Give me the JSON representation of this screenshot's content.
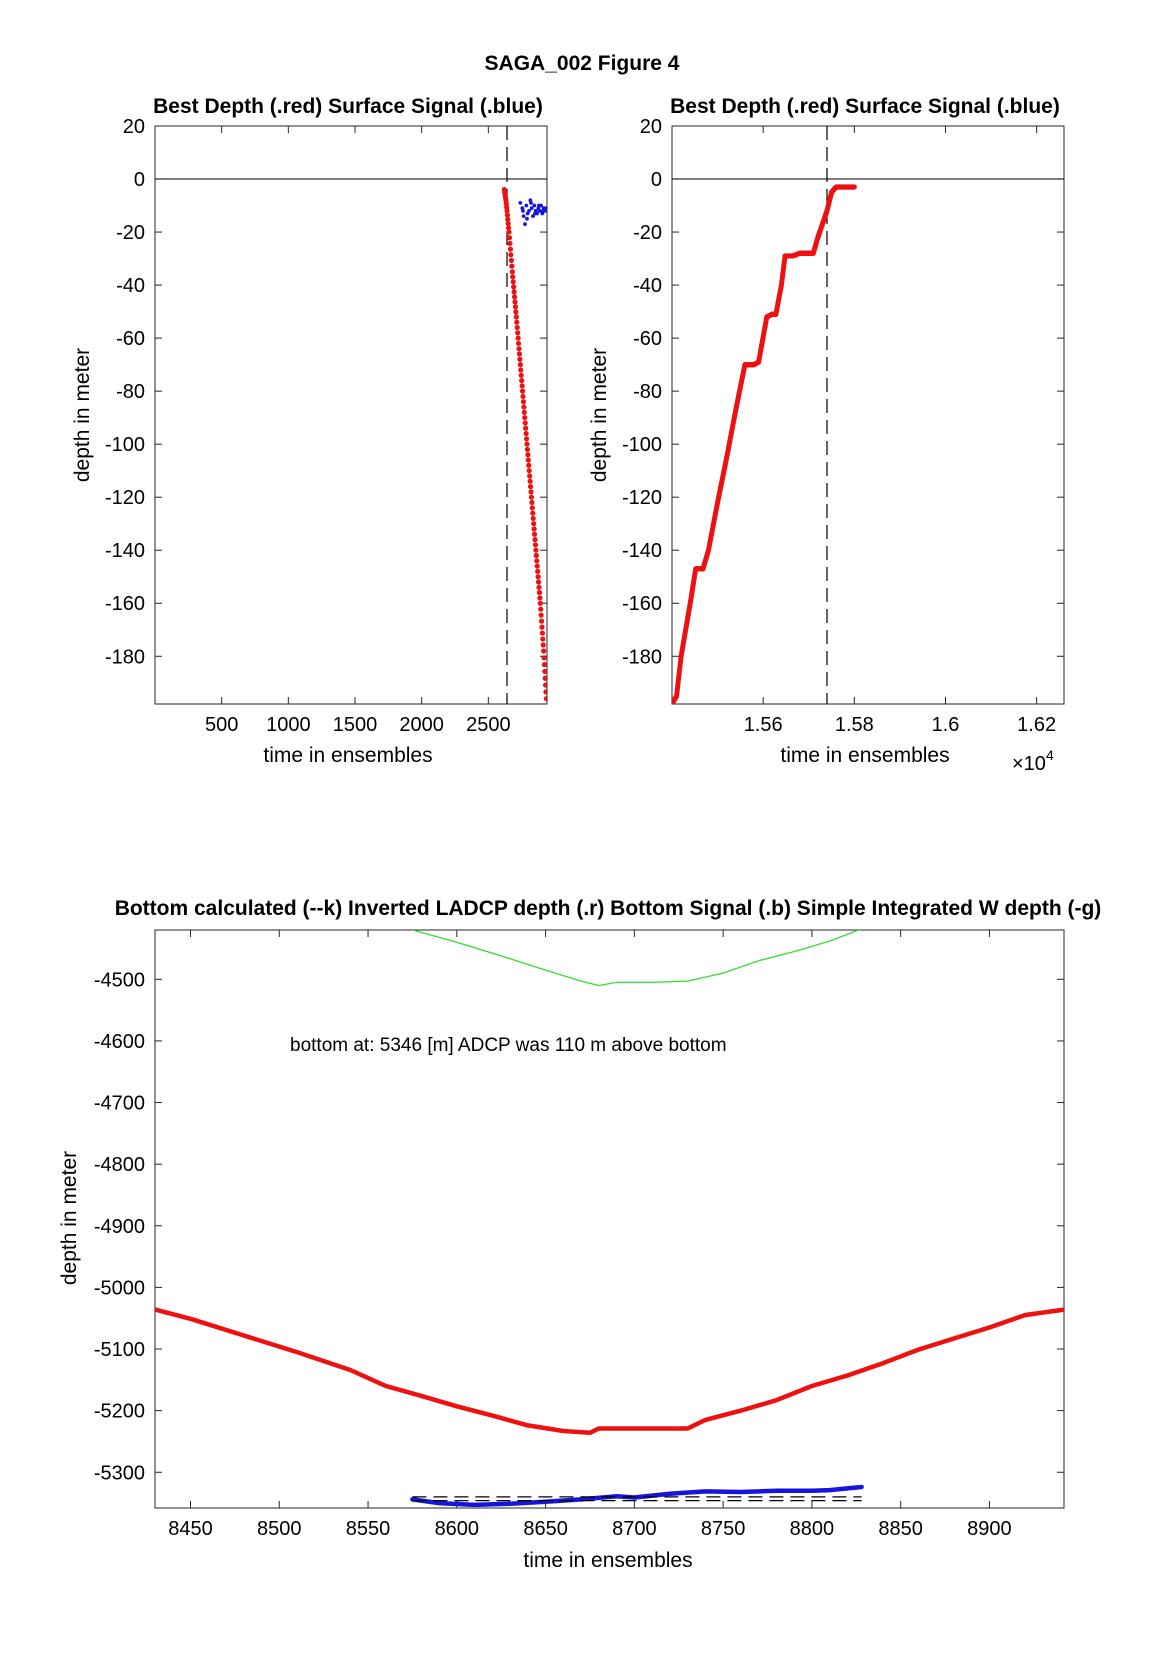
{
  "figure": {
    "suptitle": "SAGA_002   Figure 4",
    "background": "#ffffff"
  },
  "colors": {
    "red": "#ee1111",
    "blue": "#1515dd",
    "green": "#33dd33",
    "black": "#000000"
  },
  "panels": [
    {
      "title": "Best Depth (.red) Surface Signal (.blue)",
      "xlabel": "time in ensembles",
      "ylabel": "depth in meter",
      "xlim": [
        0,
        2940
      ],
      "ylim": [
        -198,
        20
      ],
      "xticks": [
        {
          "v": 500,
          "label": "500"
        },
        {
          "v": 1000,
          "label": "1000"
        },
        {
          "v": 1500,
          "label": "1500"
        },
        {
          "v": 2000,
          "label": "2000"
        },
        {
          "v": 2500,
          "label": "2500"
        }
      ],
      "yticks": [
        {
          "v": 20,
          "label": "20"
        },
        {
          "v": 0,
          "label": "0"
        },
        {
          "v": -20,
          "label": "-20"
        },
        {
          "v": -40,
          "label": "-40"
        },
        {
          "v": -60,
          "label": "-60"
        },
        {
          "v": -80,
          "label": "-80"
        },
        {
          "v": -100,
          "label": "-100"
        },
        {
          "v": -120,
          "label": "-120"
        },
        {
          "v": -140,
          "label": "-140"
        },
        {
          "v": -160,
          "label": "-160"
        },
        {
          "v": -180,
          "label": "-180"
        }
      ],
      "exponent": ""
    },
    {
      "title": "Best Depth (.red) Surface Signal (.blue)",
      "xlabel": "time in ensembles",
      "ylabel": "depth in meter",
      "xlim": [
        15400,
        16260
      ],
      "ylim": [
        -198,
        20
      ],
      "xticks": [
        {
          "v": 15600,
          "label": "1.56"
        },
        {
          "v": 15800,
          "label": "1.58"
        },
        {
          "v": 16000,
          "label": "1.6"
        },
        {
          "v": 16200,
          "label": "1.62"
        }
      ],
      "yticks": [
        {
          "v": 20,
          "label": "20"
        },
        {
          "v": 0,
          "label": "0"
        },
        {
          "v": -20,
          "label": "-20"
        },
        {
          "v": -40,
          "label": "-40"
        },
        {
          "v": -60,
          "label": "-60"
        },
        {
          "v": -80,
          "label": "-80"
        },
        {
          "v": -100,
          "label": "-100"
        },
        {
          "v": -120,
          "label": "-120"
        },
        {
          "v": -140,
          "label": "-140"
        },
        {
          "v": -160,
          "label": "-160"
        },
        {
          "v": -180,
          "label": "-180"
        }
      ],
      "exponent": "×10",
      "exponent_power": "4"
    },
    {
      "title": "Bottom calculated (--k) Inverted LADCP depth (.r) Bottom Signal (.b) Simple Integrated W depth (-g)",
      "xlabel": "time in ensembles",
      "ylabel": "depth in meter",
      "xlim": [
        8430,
        8942
      ],
      "ylim": [
        -5358,
        -4420
      ],
      "xticks": [
        {
          "v": 8450,
          "label": "8450"
        },
        {
          "v": 8500,
          "label": "8500"
        },
        {
          "v": 8550,
          "label": "8550"
        },
        {
          "v": 8600,
          "label": "8600"
        },
        {
          "v": 8650,
          "label": "8650"
        },
        {
          "v": 8700,
          "label": "8700"
        },
        {
          "v": 8750,
          "label": "8750"
        },
        {
          "v": 8800,
          "label": "8800"
        },
        {
          "v": 8850,
          "label": "8850"
        },
        {
          "v": 8900,
          "label": "8900"
        }
      ],
      "yticks": [
        {
          "v": -4500,
          "label": "-4500"
        },
        {
          "v": -4600,
          "label": "-4600"
        },
        {
          "v": -4700,
          "label": "-4700"
        },
        {
          "v": -4800,
          "label": "-4800"
        },
        {
          "v": -4900,
          "label": "-4900"
        },
        {
          "v": -5000,
          "label": "-5000"
        },
        {
          "v": -5100,
          "label": "-5100"
        },
        {
          "v": -5200,
          "label": "-5200"
        },
        {
          "v": -5300,
          "label": "-5300"
        }
      ],
      "annotation": "bottom at: 5346 [m]   ADCP was 110 m above bottom"
    }
  ],
  "chart_data": [
    {
      "type": "scatter",
      "title": "Best Depth (.red) Surface Signal (.blue)",
      "xlabel": "time in ensembles",
      "ylabel": "depth in meter",
      "xlim": [
        0,
        2940
      ],
      "ylim": [
        -198,
        20
      ],
      "grid": false,
      "reference_lines": {
        "zero_line_y": 0,
        "vertical_dashed_x": 2640
      },
      "series": [
        {
          "color": "red",
          "marker": "dot",
          "x": [
            2620,
            2625,
            2632,
            2640,
            2655,
            2680,
            2710,
            2740,
            2770,
            2800,
            2830,
            2860,
            2890,
            2915,
            2935
          ],
          "y": [
            -4,
            -6,
            -8,
            -12,
            -20,
            -35,
            -52,
            -70,
            -88,
            -106,
            -124,
            -142,
            -160,
            -178,
            -196
          ]
        },
        {
          "color": "blue",
          "marker": "dot",
          "x": [
            2740,
            2755,
            2765,
            2775,
            2785,
            2795,
            2805,
            2815,
            2825,
            2835,
            2845,
            2855,
            2865,
            2875,
            2885,
            2895,
            2905,
            2915,
            2925,
            2935,
            2760,
            2790,
            2820,
            2850,
            2880,
            2910
          ],
          "y": [
            -9,
            -11,
            -14,
            -17,
            -10,
            -13,
            -12,
            -8,
            -11,
            -14,
            -10,
            -12,
            -13,
            -11,
            -12,
            -10,
            -13,
            -11,
            -12,
            -11,
            -12,
            -15,
            -9,
            -13,
            -10,
            -12
          ]
        }
      ]
    },
    {
      "type": "scatter",
      "title": "Best Depth (.red) Surface Signal (.blue)",
      "xlabel": "time in ensembles",
      "ylabel": "depth in meter",
      "x_scale_label": "×10^4",
      "xlim": [
        15400,
        16260
      ],
      "ylim": [
        -198,
        20
      ],
      "grid": false,
      "reference_lines": {
        "zero_line_y": 0,
        "vertical_dashed_x": 15740
      },
      "series": [
        {
          "color": "red",
          "marker": "dot",
          "x": [
            15400,
            15410,
            15420,
            15440,
            15452,
            15468,
            15480,
            15500,
            15520,
            15540,
            15560,
            15570,
            15580,
            15590,
            15608,
            15620,
            15628,
            15640,
            15648,
            15660,
            15665,
            15680,
            15700,
            15710,
            15720,
            15730,
            15740,
            15750,
            15760,
            15800
          ],
          "y": [
            -198,
            -195,
            -180,
            -160,
            -147,
            -147,
            -140,
            -122,
            -105,
            -87,
            -70,
            -70,
            -70,
            -69,
            -52,
            -51,
            -51,
            -40,
            -29,
            -29,
            -29,
            -28,
            -28,
            -28,
            -22,
            -17,
            -12,
            -5,
            -3,
            -3
          ]
        }
      ]
    },
    {
      "type": "line",
      "title": "Bottom calculated (--k) Inverted LADCP depth (.r) Bottom Signal (.b) Simple Integrated W depth (-g)",
      "xlabel": "time in ensembles",
      "ylabel": "depth in meter",
      "xlim": [
        8430,
        8942
      ],
      "ylim": [
        -5358,
        -4420
      ],
      "grid": false,
      "annotation": "bottom at: 5346 [m]   ADCP was 110 m above bottom",
      "series": [
        {
          "color": "red",
          "style": "thick dots",
          "x": [
            8430,
            8450,
            8480,
            8510,
            8540,
            8560,
            8580,
            8600,
            8620,
            8640,
            8660,
            8675,
            8680,
            8700,
            8720,
            8730,
            8740,
            8760,
            8780,
            8800,
            8820,
            8840,
            8860,
            8880,
            8900,
            8920,
            8942
          ],
          "y": [
            -5036,
            -5051,
            -5078,
            -5105,
            -5134,
            -5160,
            -5176,
            -5193,
            -5208,
            -5224,
            -5233,
            -5236,
            -5229,
            -5229,
            -5229,
            -5229,
            -5215,
            -5200,
            -5183,
            -5160,
            -5143,
            -5123,
            -5101,
            -5083,
            -5065,
            -5045,
            -5036
          ]
        },
        {
          "color": "blue",
          "style": "thick dots",
          "x": [
            8575,
            8590,
            8610,
            8630,
            8650,
            8670,
            8690,
            8700,
            8720,
            8740,
            8760,
            8780,
            8800,
            8810,
            8828
          ],
          "y": [
            -5344,
            -5350,
            -5353,
            -5351,
            -5348,
            -5344,
            -5339,
            -5341,
            -5335,
            -5331,
            -5332,
            -5330,
            -5330,
            -5329,
            -5324
          ]
        },
        {
          "color": "green",
          "style": "thin line",
          "x": [
            8575,
            8600,
            8625,
            8650,
            8670,
            8680,
            8690,
            8700,
            8710,
            8730,
            8750,
            8770,
            8790,
            8810,
            8828
          ],
          "y": [
            -4420,
            -4440,
            -4462,
            -4485,
            -4503,
            -4510,
            -4505,
            -4505,
            -4505,
            -4503,
            -4490,
            -4470,
            -4455,
            -4438,
            -4418
          ]
        },
        {
          "color": "black",
          "style": "dashed",
          "x": [
            8575,
            8828
          ],
          "y": [
            -5340,
            -5340
          ]
        },
        {
          "color": "black",
          "style": "dashed",
          "x": [
            8575,
            8828
          ],
          "y": [
            -5346,
            -5346
          ]
        }
      ]
    }
  ]
}
